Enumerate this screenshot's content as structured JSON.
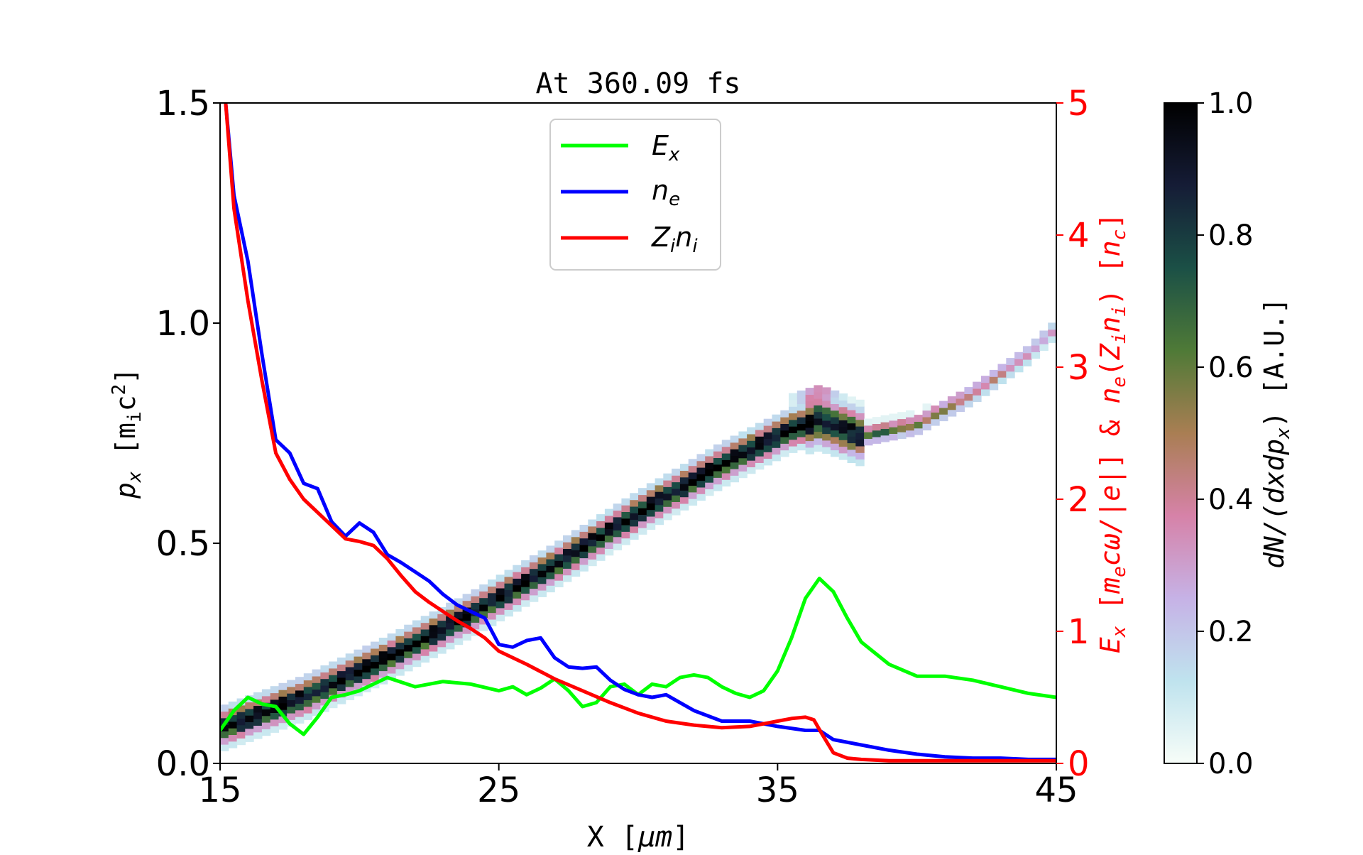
{
  "chart_data": {
    "type": "line",
    "title": "At 360.09 fs",
    "xlabel_parts": [
      "X ",
      "[",
      "μm",
      "]"
    ],
    "ylabel_left_parts": [
      "p",
      "x",
      " [m",
      "i",
      "c",
      "2",
      "]"
    ],
    "ylabel_right_parts": [
      "E",
      "x",
      " [",
      "m",
      "e",
      "cω/|e|",
      "] & ",
      "n",
      "e",
      "(",
      "Z",
      "i",
      "n",
      "i",
      ") [",
      "n",
      "c",
      "]"
    ],
    "colorbar_label_parts": [
      "dN/(dxdp",
      "x",
      ") [A.U.]"
    ],
    "xlim": [
      15,
      45
    ],
    "ylim_left": [
      0,
      1.5
    ],
    "ylim_right": [
      0,
      5
    ],
    "colorbar_lim": [
      0,
      1
    ],
    "x_ticks": [
      "15",
      "25",
      "35",
      "45"
    ],
    "y_left_ticks": [
      "0.0",
      "0.5",
      "1.0",
      "1.5"
    ],
    "y_right_ticks": [
      "0",
      "1",
      "2",
      "3",
      "4",
      "5"
    ],
    "colorbar_ticks": [
      "0.0",
      "0.2",
      "0.4",
      "0.6",
      "0.8",
      "1.0"
    ],
    "colormap_stops": [
      "#f7fdf8",
      "#bfe3ee",
      "#c6b2e6",
      "#d682a8",
      "#a97e53",
      "#4f7a37",
      "#1b5046",
      "#151c36",
      "#000000"
    ],
    "legend": {
      "placement": "upper-center",
      "entries": [
        {
          "label_main": "E",
          "label_sub": "x",
          "color": "#00ff00"
        },
        {
          "label_main": "n",
          "label_sub": "e",
          "color": "#0000ff"
        },
        {
          "label_main": "Z",
          "label_sub": "i",
          "label_main2": "n",
          "label_sub2": "i",
          "color": "#ff0000"
        }
      ]
    },
    "phase_space": {
      "description_axis": "left",
      "points": [
        [
          15,
          0.08
        ],
        [
          18,
          0.15
        ],
        [
          21,
          0.24
        ],
        [
          24,
          0.34
        ],
        [
          27,
          0.45
        ],
        [
          30,
          0.57
        ],
        [
          33,
          0.68
        ],
        [
          35.5,
          0.76
        ],
        [
          36.5,
          0.78
        ],
        [
          38,
          0.745
        ],
        [
          40,
          0.77
        ],
        [
          42,
          0.84
        ],
        [
          44,
          0.93
        ],
        [
          45,
          0.99
        ]
      ],
      "bump": {
        "x": 36.3,
        "y": 0.83
      }
    },
    "series": [
      {
        "name": "E_x",
        "axis": "right",
        "color": "#00ff00",
        "x": [
          15,
          15.5,
          16,
          16.5,
          17,
          17.5,
          18,
          18.5,
          19,
          19.5,
          20,
          21,
          22,
          23,
          24,
          25,
          25.5,
          26,
          26.5,
          27,
          27.5,
          28,
          28.5,
          29,
          29.5,
          30,
          30.5,
          31,
          31.5,
          32,
          32.5,
          33,
          33.5,
          34,
          34.5,
          35,
          35.5,
          36,
          36.5,
          37,
          37.5,
          38,
          39,
          40,
          41,
          42,
          43,
          44,
          45
        ],
        "y": [
          0.25,
          0.4,
          0.5,
          0.45,
          0.43,
          0.3,
          0.22,
          0.35,
          0.5,
          0.52,
          0.55,
          0.65,
          0.58,
          0.62,
          0.6,
          0.55,
          0.58,
          0.52,
          0.57,
          0.64,
          0.55,
          0.43,
          0.46,
          0.58,
          0.6,
          0.52,
          0.6,
          0.58,
          0.65,
          0.67,
          0.65,
          0.58,
          0.53,
          0.5,
          0.55,
          0.7,
          0.95,
          1.25,
          1.4,
          1.3,
          1.1,
          0.92,
          0.75,
          0.66,
          0.66,
          0.63,
          0.58,
          0.53,
          0.5
        ]
      },
      {
        "name": "n_e",
        "axis": "right",
        "color": "#0000ff",
        "x": [
          15.2,
          15.5,
          16,
          16.5,
          17,
          17.5,
          18,
          18.5,
          19,
          19.5,
          20,
          20.5,
          21,
          21.5,
          22,
          22.5,
          23,
          23.5,
          24,
          24.5,
          25,
          25.5,
          26,
          26.5,
          27,
          27.5,
          28,
          28.5,
          29,
          29.5,
          30,
          30.5,
          31,
          32,
          33,
          34,
          35,
          36,
          36.5,
          37,
          38,
          39,
          40,
          41,
          42,
          43,
          44,
          45
        ],
        "y": [
          5.0,
          4.3,
          3.8,
          3.1,
          2.45,
          2.35,
          2.12,
          2.08,
          1.83,
          1.72,
          1.82,
          1.75,
          1.58,
          1.52,
          1.45,
          1.38,
          1.28,
          1.2,
          1.15,
          1.1,
          0.9,
          0.88,
          0.93,
          0.95,
          0.8,
          0.73,
          0.72,
          0.73,
          0.63,
          0.56,
          0.52,
          0.5,
          0.52,
          0.4,
          0.32,
          0.32,
          0.28,
          0.25,
          0.25,
          0.18,
          0.14,
          0.1,
          0.07,
          0.05,
          0.04,
          0.04,
          0.03,
          0.03
        ]
      },
      {
        "name": "Z_i n_i",
        "axis": "right",
        "color": "#ff0000",
        "x": [
          15.2,
          15.5,
          16,
          16.5,
          17,
          17.5,
          18,
          18.5,
          19,
          19.5,
          20,
          20.5,
          21,
          21.5,
          22,
          22.5,
          23,
          23.5,
          24,
          24.5,
          25,
          26,
          27,
          28,
          29,
          30,
          31,
          32,
          33,
          34,
          35,
          35.5,
          36,
          36.3,
          36.6,
          37,
          37.5,
          38,
          39,
          40,
          41,
          42,
          43,
          44,
          45
        ],
        "y": [
          5.0,
          4.2,
          3.5,
          2.9,
          2.35,
          2.15,
          2.0,
          1.9,
          1.8,
          1.7,
          1.68,
          1.65,
          1.55,
          1.42,
          1.3,
          1.22,
          1.15,
          1.08,
          1.02,
          0.95,
          0.85,
          0.75,
          0.64,
          0.55,
          0.46,
          0.38,
          0.32,
          0.29,
          0.27,
          0.28,
          0.32,
          0.34,
          0.35,
          0.33,
          0.22,
          0.08,
          0.04,
          0.03,
          0.02,
          0.02,
          0.02,
          0.02,
          0.02,
          0.02,
          0.02
        ]
      }
    ]
  }
}
